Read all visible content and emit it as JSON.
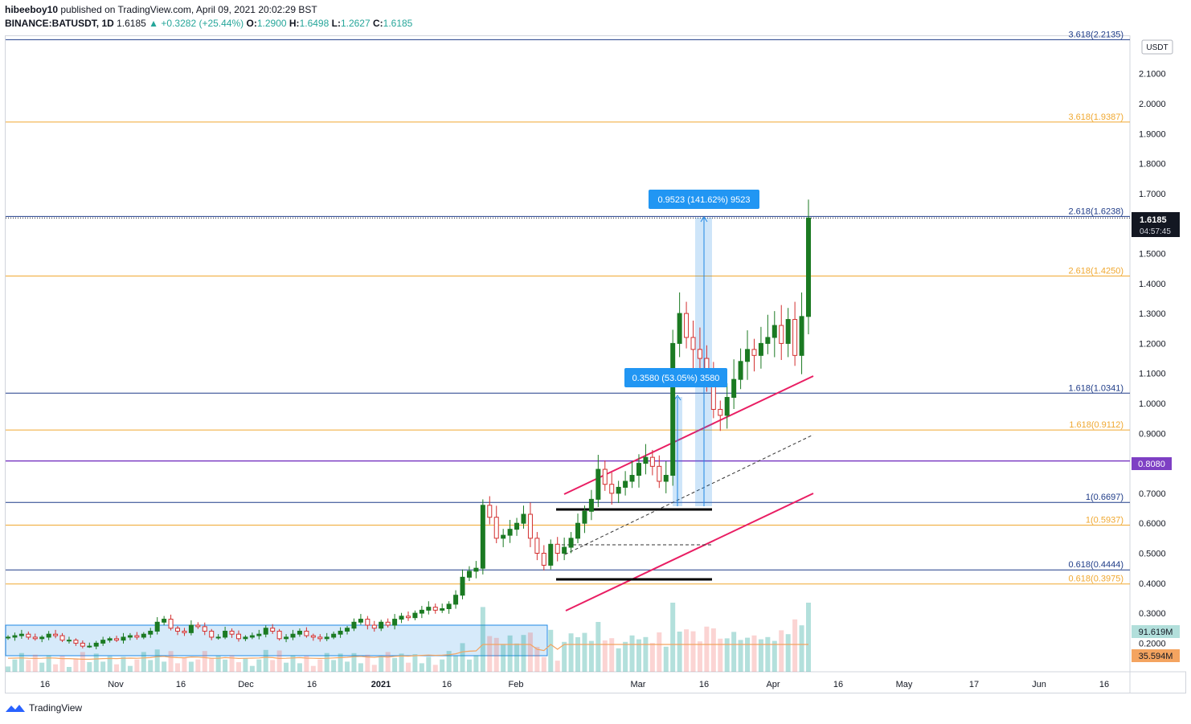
{
  "header": {
    "author": "hibeeboy10",
    "published": "published on TradingView.com, April 09, 2021 20:02:29 BST",
    "symbol": "BINANCE:BATUSDT, 1D",
    "last": "1.6185",
    "change": "+0.3282 (+25.44%)",
    "o_label": "O:",
    "o_value": "1.2900",
    "h_label": "H:",
    "h_value": "1.6498",
    "l_label": "L:",
    "l_value": "1.2627",
    "c_label": "C:",
    "c_value": "1.6185"
  },
  "footer": {
    "brand": "TradingView"
  },
  "colors": {
    "up": "#26a69a",
    "candle_up": "#1b7a22",
    "candle_down": "#d32f2f",
    "orange": "#f0a830",
    "navy": "#1f3c88",
    "purple": "#7e3fc4",
    "pink": "#e91e63",
    "blue_box": "#1e88e5"
  },
  "chart_data": {
    "type": "candlestick",
    "currency": "USDT",
    "ylim": [
      0.13,
      2.23
    ],
    "y_ticks": [
      "2.1000",
      "2.0000",
      "1.9000",
      "1.8000",
      "1.7000",
      "1.5000",
      "1.4000",
      "1.3000",
      "1.2000",
      "1.1000",
      "1.0000",
      "0.9000",
      "0.7000",
      "0.6000",
      "0.5000",
      "0.4000",
      "0.3000",
      "0.2000"
    ],
    "x_ticks": [
      "16",
      "Nov",
      "16",
      "Dec",
      "16",
      "2021",
      "16",
      "Feb",
      "Mar",
      "16",
      "Apr",
      "16",
      "May",
      "17",
      "Jun",
      "16"
    ],
    "fib_levels": [
      {
        "label": "3.618(2.2135)",
        "value": 2.2135,
        "color": "navy"
      },
      {
        "label": "3.618(1.9387)",
        "value": 1.9387,
        "color": "orange"
      },
      {
        "label": "2.618(1.6238)",
        "value": 1.6238,
        "color": "navy"
      },
      {
        "label": "2.618(1.4250)",
        "value": 1.425,
        "color": "orange"
      },
      {
        "label": "1.618(1.0341)",
        "value": 1.0341,
        "color": "navy"
      },
      {
        "label": "1.618(0.9112)",
        "value": 0.9112,
        "color": "orange"
      },
      {
        "label": "1(0.6697)",
        "value": 0.6697,
        "color": "navy"
      },
      {
        "label": "1(0.5937)",
        "value": 0.5937,
        "color": "orange"
      },
      {
        "label": "0.618(0.4444)",
        "value": 0.4444,
        "color": "navy"
      },
      {
        "label": "0.618(0.3975)",
        "value": 0.3975,
        "color": "orange"
      }
    ],
    "horizontal_line": {
      "value": 0.808,
      "label": "0.8080"
    },
    "last_price": {
      "value": 1.6185,
      "label": "1.6185",
      "countdown": "04:57:45"
    },
    "volume_labels": [
      {
        "label": "91.619M",
        "color": "up"
      },
      {
        "label": "35.594M",
        "color": "orange"
      }
    ],
    "measure_labels": [
      "0.9523 (141.62%) 9523",
      "0.3580 (53.05%) 3580"
    ],
    "closes": [
      0.22,
      0.225,
      0.23,
      0.22,
      0.215,
      0.22,
      0.23,
      0.225,
      0.21,
      0.21,
      0.2,
      0.19,
      0.19,
      0.2,
      0.21,
      0.215,
      0.21,
      0.22,
      0.225,
      0.22,
      0.23,
      0.24,
      0.27,
      0.28,
      0.25,
      0.24,
      0.235,
      0.26,
      0.255,
      0.24,
      0.22,
      0.22,
      0.24,
      0.23,
      0.215,
      0.22,
      0.225,
      0.23,
      0.25,
      0.24,
      0.215,
      0.22,
      0.23,
      0.24,
      0.225,
      0.22,
      0.215,
      0.22,
      0.23,
      0.24,
      0.25,
      0.27,
      0.28,
      0.26,
      0.25,
      0.27,
      0.26,
      0.28,
      0.29,
      0.285,
      0.3,
      0.31,
      0.32,
      0.31,
      0.315,
      0.33,
      0.36,
      0.42,
      0.44,
      0.45,
      0.66,
      0.62,
      0.55,
      0.56,
      0.58,
      0.6,
      0.63,
      0.55,
      0.5,
      0.46,
      0.53,
      0.5,
      0.52,
      0.55,
      0.6,
      0.64,
      0.68,
      0.78,
      0.73,
      0.7,
      0.72,
      0.74,
      0.76,
      0.8,
      0.82,
      0.79,
      0.74,
      0.76,
      1.2,
      1.3,
      1.22,
      1.18,
      1.15,
      1.08,
      0.98,
      0.96,
      1.02,
      1.08,
      1.14,
      1.18,
      1.16,
      1.2,
      1.22,
      1.26,
      1.2,
      1.28,
      1.16,
      1.29,
      1.6185
    ]
  }
}
